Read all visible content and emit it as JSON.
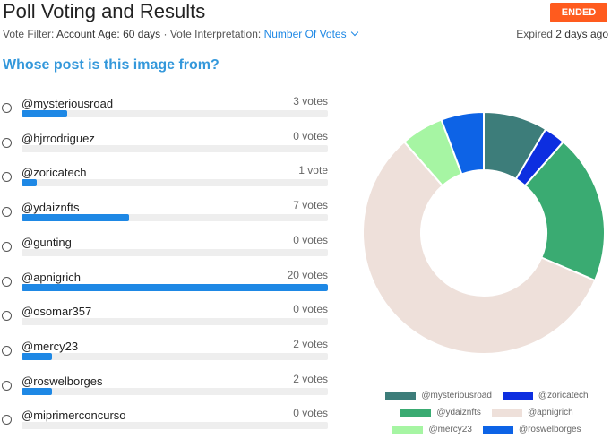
{
  "header": {
    "title": "Poll Voting and Results",
    "status_badge": "ENDED",
    "vote_filter_label": "Vote Filter:",
    "vote_filter_value": "Account Age: 60 days",
    "separator": "·",
    "interpretation_label": "Vote Interpretation:",
    "interpretation_value": "Number Of Votes",
    "expired_label": "Expired",
    "expired_value": "2 days ago"
  },
  "question": "Whose post is this image from?",
  "options": [
    {
      "label": "@mysteriousroad",
      "votes_text": "3 votes",
      "votes": 3
    },
    {
      "label": "@hjrrodriguez",
      "votes_text": "0 votes",
      "votes": 0
    },
    {
      "label": "@zoricatech",
      "votes_text": "1 vote",
      "votes": 1
    },
    {
      "label": "@ydaiznfts",
      "votes_text": "7 votes",
      "votes": 7
    },
    {
      "label": "@gunting",
      "votes_text": "0 votes",
      "votes": 0
    },
    {
      "label": "@apnigrich",
      "votes_text": "20 votes",
      "votes": 20
    },
    {
      "label": "@osomar357",
      "votes_text": "0 votes",
      "votes": 0
    },
    {
      "label": "@mercy23",
      "votes_text": "2 votes",
      "votes": 2
    },
    {
      "label": "@roswelborges",
      "votes_text": "2 votes",
      "votes": 2
    },
    {
      "label": "@miprimerconcurso",
      "votes_text": "0 votes",
      "votes": 0
    }
  ],
  "colors": {
    "accent": "#1e88e5",
    "badge": "#ff5b1e",
    "question": "#3498db"
  },
  "chart_data": {
    "type": "pie",
    "variant": "doughnut",
    "categories": [
      "@mysteriousroad",
      "@zoricatech",
      "@ydaiznfts",
      "@apnigrich",
      "@mercy23",
      "@roswelborges"
    ],
    "values": [
      3,
      1,
      7,
      20,
      2,
      2
    ],
    "colors": [
      "#3d7d7a",
      "#0d2ee0",
      "#3aab72",
      "#eee0da",
      "#a6f5a3",
      "#0d63e6"
    ],
    "legend_position": "bottom"
  }
}
